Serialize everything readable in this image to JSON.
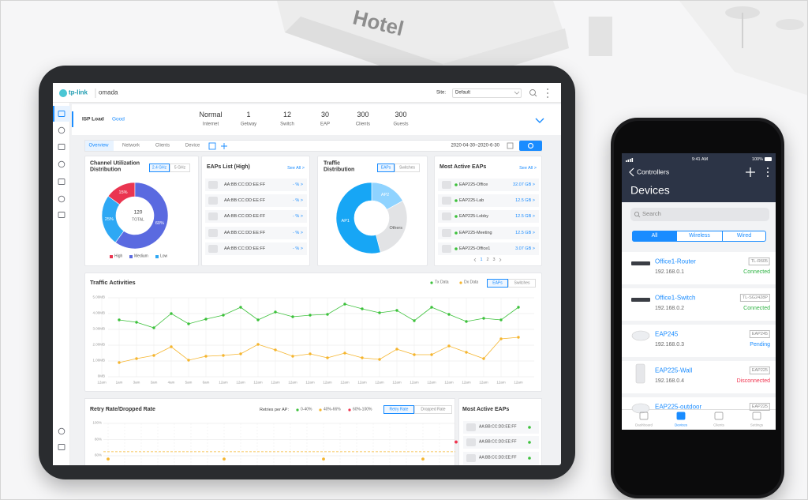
{
  "background": {
    "sign": "Hotel"
  },
  "tablet": {
    "header": {
      "brand": "tp-link",
      "product": "omada",
      "site_label": "Site:",
      "site": "Default"
    },
    "isp": {
      "label": "ISP Load",
      "status": "Good",
      "stats": [
        {
          "value": "Normal",
          "label": "Internet"
        },
        {
          "value": 1,
          "label": "Getway"
        },
        {
          "value": 12,
          "label": "Switch"
        },
        {
          "value": 30,
          "label": "EAP"
        },
        {
          "value": 300,
          "label": "Clients"
        },
        {
          "value": 300,
          "label": "Guests"
        }
      ]
    },
    "tabs": [
      "Overview",
      "Network",
      "Clients",
      "Device"
    ],
    "date_range": "2020-04-30~2020-6-30",
    "channel": {
      "title": "Channel Utilization Distribution",
      "bands": [
        "2.4 GHz",
        "5 GHz"
      ],
      "total": 120,
      "total_label": "TOTAL",
      "chart": {
        "type": "donut",
        "categories": [
          "High",
          "Medium",
          "Low"
        ],
        "values": [
          15,
          60,
          25
        ],
        "value_labels": [
          "15%",
          "60%",
          "25%"
        ],
        "colors": [
          "#ea3550",
          "#5a6ae0",
          "#2ea8f4"
        ]
      }
    },
    "eaps_high": {
      "title": "EAPs List (High)",
      "see_all": "See All >",
      "rows": [
        {
          "mac": "AA:BB:CC:DD:EE:FF",
          "value": "- % >"
        },
        {
          "mac": "AA:BB:CC:DD:EE:FF",
          "value": "- % >"
        },
        {
          "mac": "AA:BB:CC:DD:EE:FF",
          "value": "- % >"
        },
        {
          "mac": "AA:BB:CC:DD:EE:FF",
          "value": "- % >"
        },
        {
          "mac": "AA:BB:CC:DD:EE:FF",
          "value": "- % >"
        }
      ]
    },
    "traffic_distribution": {
      "title": "Traffic Distribution",
      "toggles": [
        "EAPs",
        "Switches"
      ],
      "chart": {
        "type": "donut",
        "categories": [
          "AP2",
          "Others",
          "AP1"
        ],
        "values": [
          17,
          29,
          54
        ],
        "colors": [
          "#8fd3ff",
          "#e2e3e5",
          "#17a6f5"
        ]
      }
    },
    "most_active": {
      "title": "Most Active EAPs",
      "see_all": "See All >",
      "rows": [
        {
          "name": "EAP225-Office",
          "usage": "32.07 GB >"
        },
        {
          "name": "EAP225-Lab",
          "usage": "12.5 GB >"
        },
        {
          "name": "EAP225-Lobby",
          "usage": "12.5 GB >"
        },
        {
          "name": "EAP225-Meeting",
          "usage": "12.5 GB >"
        },
        {
          "name": "EAP225-Office1",
          "usage": "3.07 GB >"
        }
      ],
      "pages": [
        1,
        2,
        3
      ]
    },
    "traffic_activities": {
      "title": "Traffic Activities",
      "toggles": [
        "EAPs",
        "Switches"
      ],
      "chart": {
        "type": "line",
        "categories": [
          "12am",
          "1am",
          "3am",
          "3am",
          "4am",
          "5am",
          "6am",
          "12am",
          "12am",
          "12am",
          "12am",
          "12am",
          "12am",
          "12am",
          "12am",
          "12am",
          "12am",
          "12am",
          "12am",
          "12am",
          "12am",
          "12am",
          "12am",
          "12am",
          "12am"
        ],
        "series": [
          {
            "name": "Tx Data",
            "color": "#3cc13b",
            "values": [
              null,
              3.6,
              3.45,
              3.1,
              4,
              3.35,
              3.65,
              3.9,
              4.4,
              3.6,
              4.1,
              3.8,
              3.9,
              3.95,
              4.6,
              4.3,
              4.05,
              4.2,
              3.55,
              4.4,
              3.95,
              3.5,
              3.7,
              3.6,
              4.4
            ]
          },
          {
            "name": "Dx Data",
            "color": "#f5b52e",
            "values": [
              null,
              0.9,
              1.15,
              1.35,
              1.9,
              1.05,
              1.3,
              1.35,
              1.45,
              2.05,
              1.7,
              1.3,
              1.45,
              1.2,
              1.5,
              1.2,
              1.1,
              1.75,
              1.4,
              1.4,
              1.95,
              1.55,
              1.15,
              2.4,
              2.5
            ]
          }
        ],
        "ylim": [
          0,
          5
        ],
        "yticks": [
          {
            "value": 0,
            "label": "0MB"
          },
          {
            "value": 1,
            "label": "1.00MB"
          },
          {
            "value": 2,
            "label": "2.00MB"
          },
          {
            "value": 3,
            "label": "3.00MB"
          },
          {
            "value": 4,
            "label": "4.00MB"
          },
          {
            "value": 5,
            "label": "5.00MB"
          }
        ],
        "grid": true
      }
    },
    "retry": {
      "title": "Retry Rate/Dropped Rate",
      "legend_title": "Retries per AP:",
      "toggles": [
        "Retry Rate",
        "Dropped Rate"
      ],
      "chart": {
        "type": "scatter",
        "series": [
          {
            "name": "0-40%",
            "color": "#3cc13b",
            "values": [
              null,
              null,
              null,
              null,
              null,
              null,
              null,
              null,
              null,
              null,
              null,
              null,
              null,
              null,
              null,
              null,
              null,
              null,
              null,
              null,
              null,
              null
            ]
          },
          {
            "name": "40%-66%",
            "color": "#f5b52e",
            "values": [
              56,
              null,
              null,
              null,
              null,
              null,
              null,
              56,
              null,
              null,
              null,
              null,
              null,
              56,
              null,
              null,
              null,
              null,
              null,
              56,
              null,
              null
            ]
          },
          {
            "name": "60%-100%",
            "color": "#f0344f",
            "values": [
              null,
              null,
              null,
              null,
              null,
              null,
              null,
              null,
              null,
              null,
              null,
              null,
              null,
              null,
              null,
              null,
              null,
              null,
              null,
              null,
              null,
              77
            ]
          }
        ],
        "ylim": [
          40,
          100
        ],
        "yticks": [
          {
            "value": 100,
            "label": "100%"
          },
          {
            "value": 80,
            "label": "80%"
          },
          {
            "value": 60,
            "label": "60%"
          }
        ],
        "threshold": 65,
        "grid": true
      }
    },
    "active_list": {
      "title": "Most Active EAPs",
      "rows": [
        "AA:BB:CC:DD:EE:FF",
        "AA:BB:CC:DD:EE:FF",
        "AA:BB:CC:DD:EE:FF"
      ]
    }
  },
  "phone": {
    "status": {
      "time": "9:41 AM",
      "battery": "100%"
    },
    "nav": {
      "back": "Controllers",
      "title": "Devices"
    },
    "search": "Search",
    "filters": [
      "All",
      "Wireless",
      "Wired"
    ],
    "devices": [
      {
        "name": "Office1-Router",
        "ip": "192.168.0.1",
        "model": "TL-R605",
        "status": "Connected",
        "status_color": "#2fb344"
      },
      {
        "name": "Office1-Switch",
        "ip": "192.168.0.2",
        "model": "TL-SG2428P",
        "status": "Connected",
        "status_color": "#2fb344"
      },
      {
        "name": "EAP245",
        "ip": "192.168.0.3",
        "model": "EAP245",
        "status": "Pending",
        "status_color": "#1a8cff"
      },
      {
        "name": "EAP225-Wall",
        "ip": "192.168.0.4",
        "model": "EAP225",
        "status": "Disconnected",
        "status_color": "#f0344f"
      },
      {
        "name": "EAP225-outdoor",
        "model": "EAP225"
      }
    ],
    "tabs": [
      "Dashboard",
      "Devices",
      "Clients",
      "Settings"
    ]
  }
}
